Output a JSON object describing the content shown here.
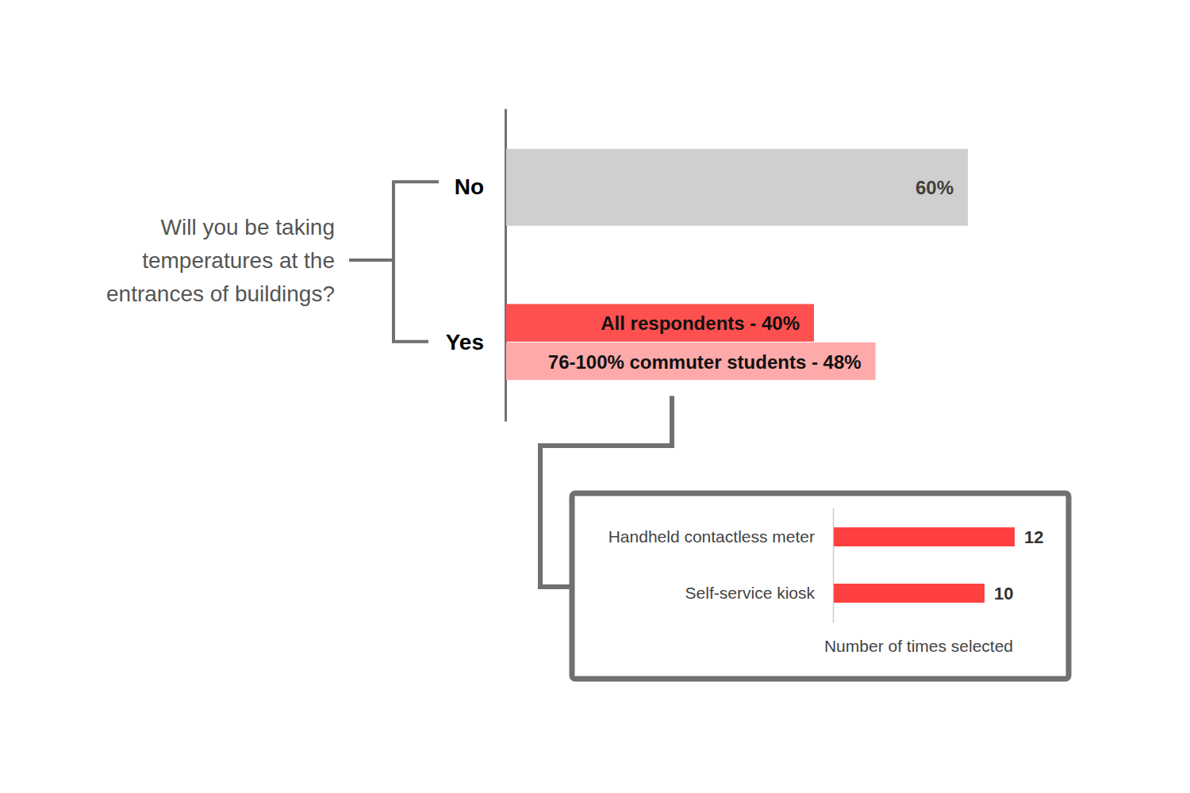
{
  "chart_data": [
    {
      "type": "bar",
      "orientation": "horizontal",
      "title": "Will you be taking temperatures at the entrances of buildings?",
      "categories": [
        "No",
        "Yes"
      ],
      "series": [
        {
          "values": [
            60,
            40
          ],
          "colors": [
            "#d0cece",
            "#ff5050"
          ],
          "value_labels": [
            "60%",
            "All respondents - 40%"
          ]
        },
        {
          "values": [
            null,
            48
          ],
          "color": "#ffaaaa",
          "value_labels": [
            null,
            "76-100% commuter students - 48%"
          ]
        }
      ],
      "xlim": [
        0,
        60
      ],
      "data_labels": true,
      "tick_labels": "y"
    },
    {
      "type": "bar",
      "orientation": "horizontal",
      "categories": [
        "Handheld contactless meter",
        "Self-service kiosk"
      ],
      "values": [
        12,
        10
      ],
      "color": "#ff4040",
      "xlabel": "Number of times selected",
      "xlim": [
        0,
        12
      ],
      "data_labels": true,
      "tick_labels": "y"
    }
  ]
}
